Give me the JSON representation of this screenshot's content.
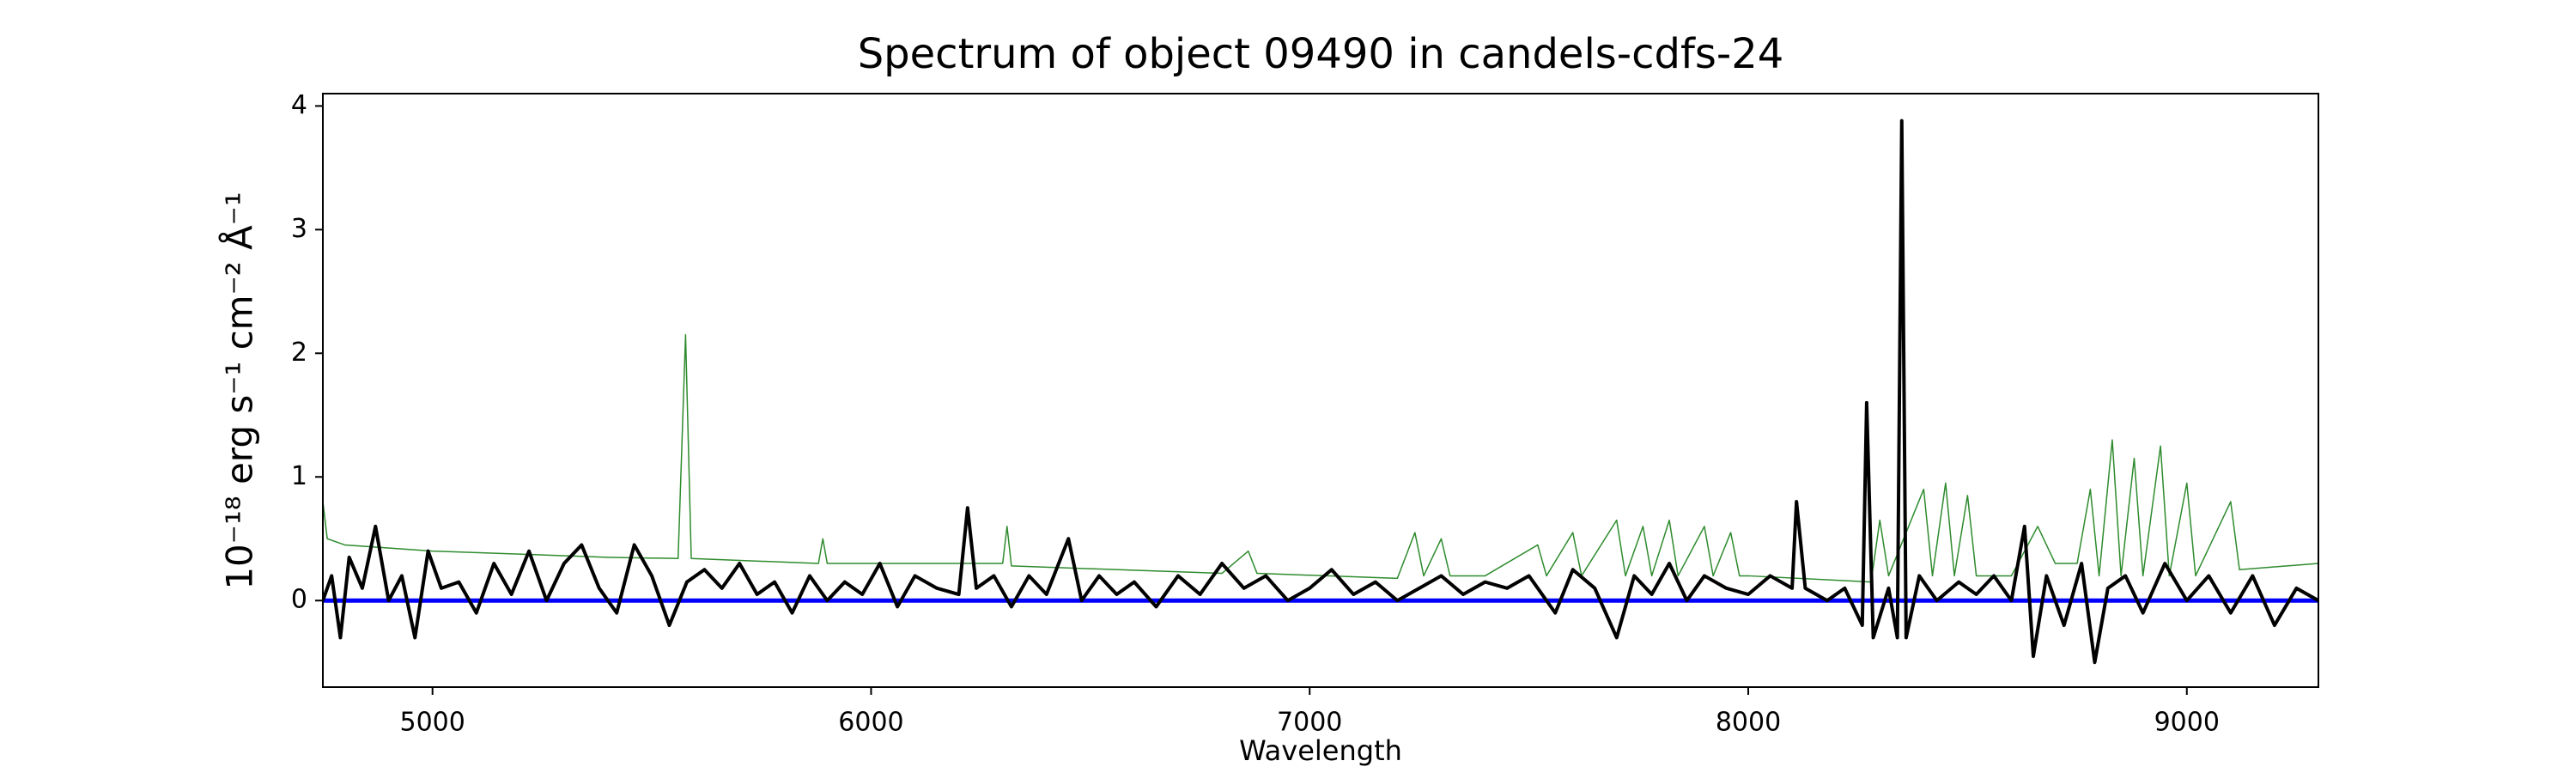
{
  "chart_data": {
    "type": "line",
    "title": "Spectrum of object 09490 in candels-cdfs-24",
    "x_label": "Wavelength",
    "y_label": "10⁻¹⁸ erg s⁻¹ cm⁻² Å⁻¹",
    "xlim": [
      4750,
      9300
    ],
    "ylim": [
      -0.7,
      4.1
    ],
    "xticks": [
      5000,
      6000,
      7000,
      8000,
      9000
    ],
    "yticks": [
      0,
      1,
      2,
      3,
      4
    ],
    "series": [
      {
        "color": "#2e8b2e",
        "width": 1.5,
        "x": [
          4750,
          4760,
          4800,
          5000,
          5400,
          5560,
          5577,
          5590,
          5880,
          5890,
          5900,
          6300,
          6310,
          6320,
          6800,
          6860,
          6880,
          7200,
          7240,
          7260,
          7300,
          7320,
          7400,
          7520,
          7540,
          7600,
          7620,
          7700,
          7720,
          7760,
          7780,
          7820,
          7840,
          7900,
          7920,
          7960,
          7980,
          8000,
          8280,
          8300,
          8320,
          8400,
          8420,
          8450,
          8470,
          8500,
          8520,
          8600,
          8660,
          8700,
          8750,
          8780,
          8800,
          8830,
          8850,
          8880,
          8900,
          8940,
          8960,
          9000,
          9020,
          9100,
          9120,
          9300
        ],
        "values": [
          0.8,
          0.5,
          0.45,
          0.4,
          0.35,
          0.34,
          2.15,
          0.34,
          0.3,
          0.5,
          0.3,
          0.3,
          0.6,
          0.28,
          0.22,
          0.4,
          0.22,
          0.18,
          0.55,
          0.2,
          0.5,
          0.2,
          0.2,
          0.45,
          0.2,
          0.55,
          0.2,
          0.65,
          0.2,
          0.6,
          0.2,
          0.65,
          0.2,
          0.6,
          0.2,
          0.55,
          0.2,
          0.2,
          0.15,
          0.65,
          0.2,
          0.9,
          0.2,
          0.95,
          0.2,
          0.85,
          0.2,
          0.2,
          0.6,
          0.3,
          0.3,
          0.9,
          0.2,
          1.3,
          0.2,
          1.15,
          0.2,
          1.25,
          0.2,
          0.95,
          0.2,
          0.8,
          0.25,
          0.3
        ]
      },
      {
        "color": "#0000ff",
        "width": 5,
        "x": [
          4750,
          9300
        ],
        "values": [
          0,
          0
        ]
      },
      {
        "color": "#000000",
        "width": 4,
        "x": [
          4750,
          4770,
          4790,
          4810,
          4840,
          4870,
          4900,
          4930,
          4960,
          4990,
          5020,
          5060,
          5100,
          5140,
          5180,
          5220,
          5260,
          5300,
          5340,
          5380,
          5420,
          5460,
          5500,
          5540,
          5580,
          5620,
          5660,
          5700,
          5740,
          5780,
          5820,
          5860,
          5900,
          5940,
          5980,
          6020,
          6060,
          6100,
          6150,
          6200,
          6220,
          6240,
          6280,
          6320,
          6360,
          6400,
          6450,
          6480,
          6520,
          6560,
          6600,
          6650,
          6700,
          6750,
          6800,
          6850,
          6900,
          6950,
          7000,
          7050,
          7100,
          7150,
          7200,
          7250,
          7300,
          7350,
          7400,
          7450,
          7500,
          7560,
          7600,
          7650,
          7700,
          7740,
          7780,
          7820,
          7860,
          7900,
          7950,
          8000,
          8050,
          8100,
          8110,
          8130,
          8180,
          8220,
          8260,
          8270,
          8285,
          8320,
          8340,
          8350,
          8360,
          8390,
          8430,
          8480,
          8520,
          8560,
          8600,
          8630,
          8650,
          8680,
          8720,
          8760,
          8790,
          8820,
          8860,
          8900,
          8950,
          9000,
          9050,
          9100,
          9150,
          9200,
          9250,
          9300
        ],
        "values": [
          0.0,
          0.2,
          -0.3,
          0.35,
          0.1,
          0.6,
          0.0,
          0.2,
          -0.3,
          0.4,
          0.1,
          0.15,
          -0.1,
          0.3,
          0.05,
          0.4,
          0.0,
          0.3,
          0.45,
          0.1,
          -0.1,
          0.45,
          0.2,
          -0.2,
          0.15,
          0.25,
          0.1,
          0.3,
          0.05,
          0.15,
          -0.1,
          0.2,
          0.0,
          0.15,
          0.05,
          0.3,
          -0.05,
          0.2,
          0.1,
          0.05,
          0.75,
          0.1,
          0.2,
          -0.05,
          0.2,
          0.05,
          0.5,
          0.0,
          0.2,
          0.05,
          0.15,
          -0.05,
          0.2,
          0.05,
          0.3,
          0.1,
          0.2,
          0.0,
          0.1,
          0.25,
          0.05,
          0.15,
          0.0,
          0.1,
          0.2,
          0.05,
          0.15,
          0.1,
          0.2,
          -0.1,
          0.25,
          0.1,
          -0.3,
          0.2,
          0.05,
          0.3,
          0.0,
          0.2,
          0.1,
          0.05,
          0.2,
          0.1,
          0.8,
          0.1,
          0.0,
          0.1,
          -0.2,
          1.6,
          -0.3,
          0.1,
          -0.3,
          3.88,
          -0.3,
          0.2,
          0.0,
          0.15,
          0.05,
          0.2,
          0.0,
          0.6,
          -0.45,
          0.2,
          -0.2,
          0.3,
          -0.5,
          0.1,
          0.2,
          -0.1,
          0.3,
          0.0,
          0.2,
          -0.1,
          0.2,
          -0.2,
          0.1,
          0.0
        ]
      }
    ]
  }
}
